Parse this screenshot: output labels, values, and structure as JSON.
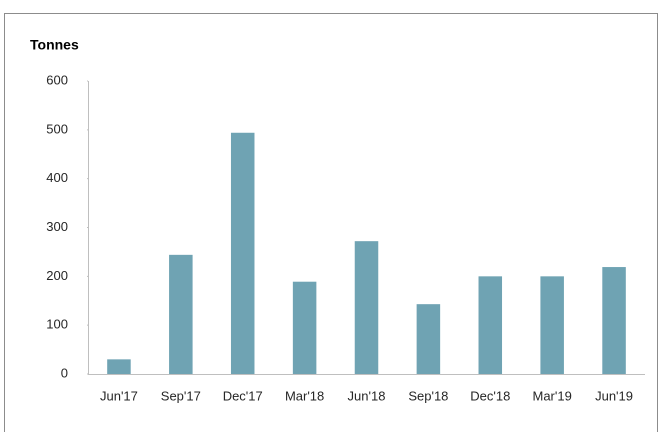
{
  "chart_data": {
    "type": "bar",
    "title": "Tonnes",
    "categories": [
      "Jun'17",
      "Sep'17",
      "Dec'17",
      "Mar'18",
      "Jun'18",
      "Sep'18",
      "Dec'18",
      "Mar'19",
      "Jun'19"
    ],
    "values": [
      30,
      244,
      494,
      189,
      272,
      143,
      200,
      200,
      219
    ],
    "color": "#6fa3b3",
    "ylim": [
      0,
      600
    ],
    "yticks": [
      0,
      100,
      200,
      300,
      400,
      500,
      600
    ],
    "grid": false
  }
}
